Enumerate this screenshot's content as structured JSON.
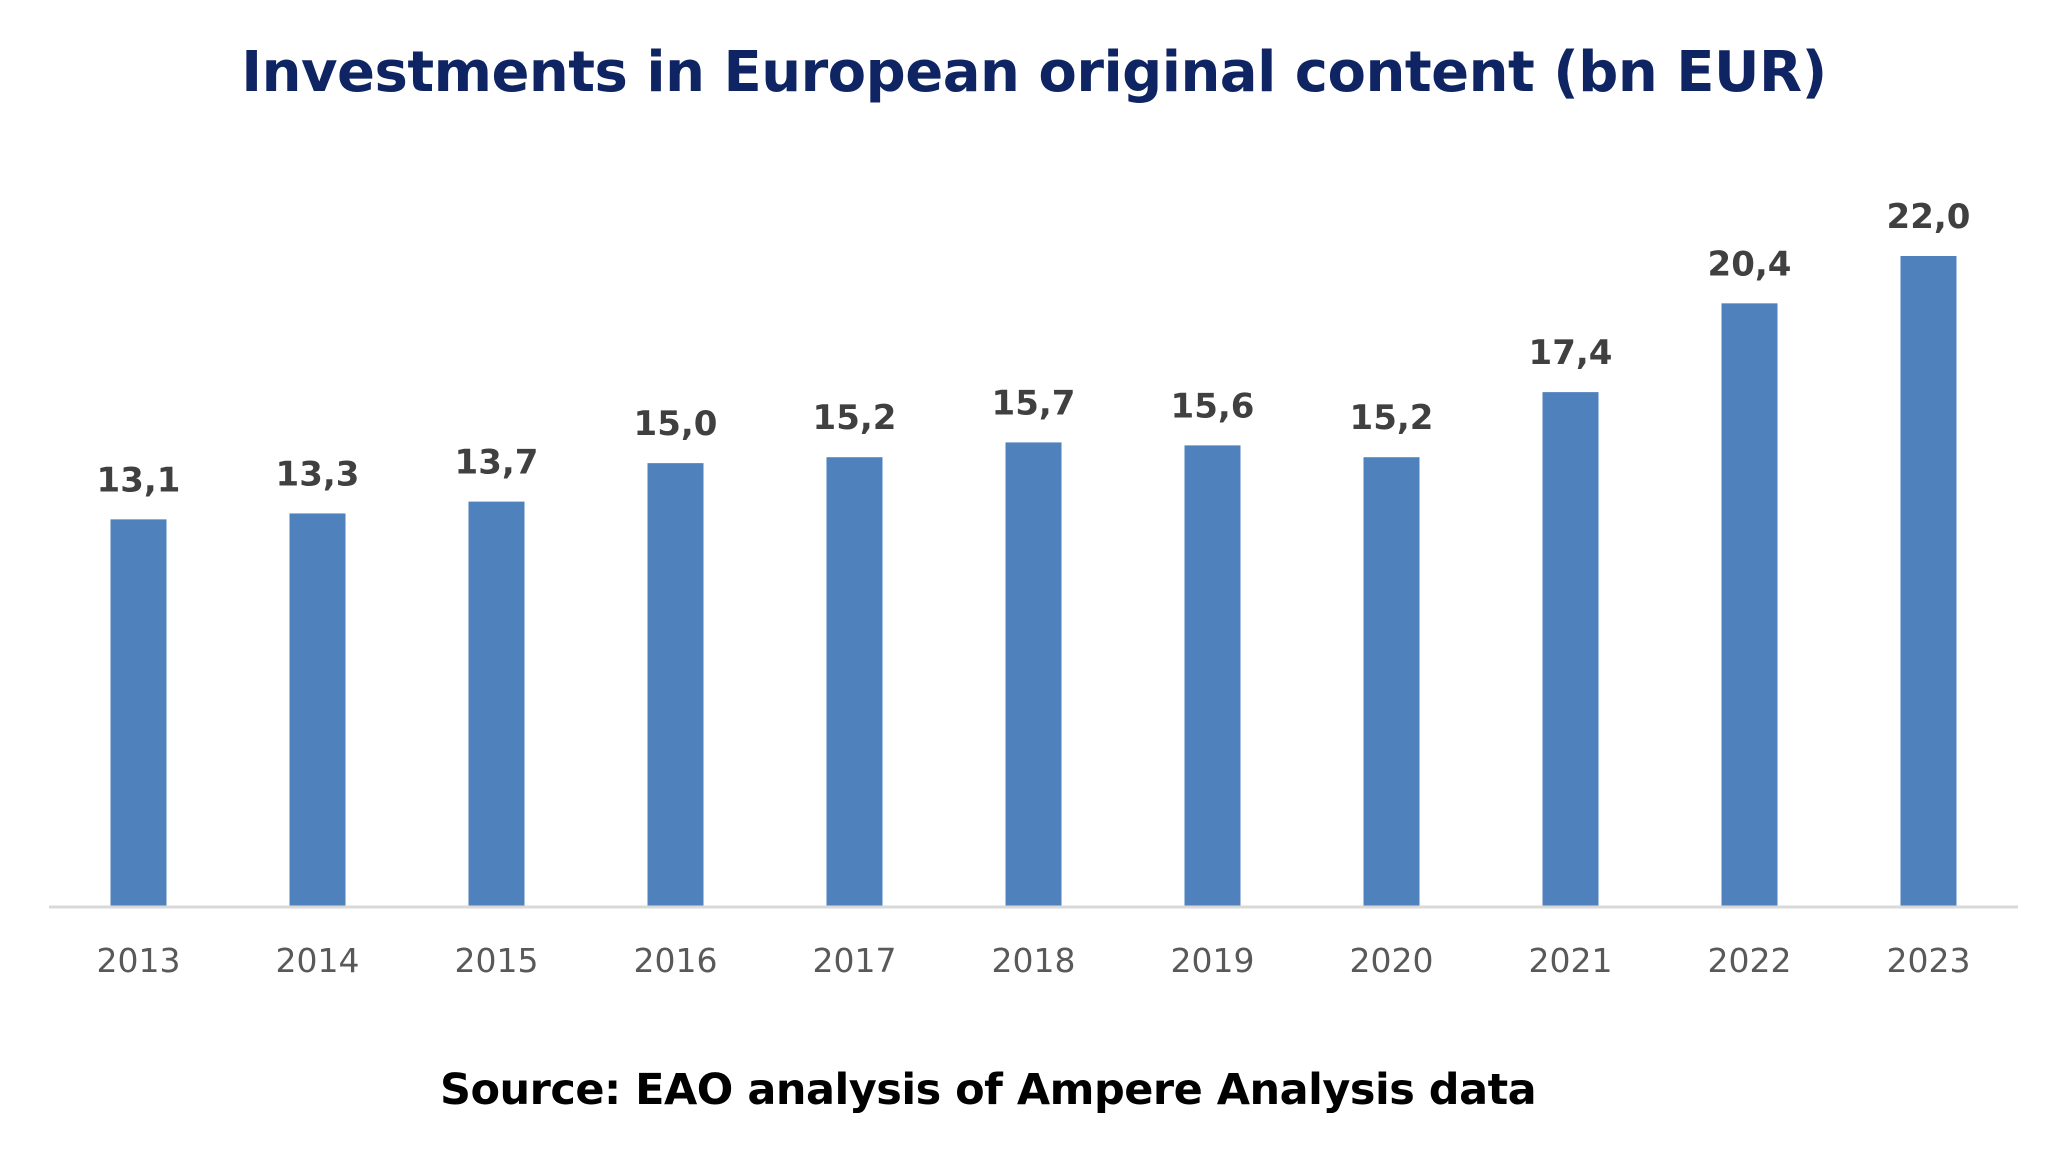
{
  "chart_data": {
    "type": "bar",
    "title": "Investments in European original content (bn EUR)",
    "xlabel": "",
    "ylabel": "",
    "categories": [
      "2013",
      "2014",
      "2015",
      "2016",
      "2017",
      "2018",
      "2019",
      "2020",
      "2021",
      "2022",
      "2023"
    ],
    "values": [
      13.1,
      13.3,
      13.7,
      15.0,
      15.2,
      15.7,
      15.6,
      15.2,
      17.4,
      20.4,
      22.0
    ],
    "data_labels": [
      "13,1",
      "13,3",
      "13,7",
      "15,0",
      "15,2",
      "15,7",
      "15,6",
      "15,2",
      "17,4",
      "20,4",
      "22,0"
    ],
    "ylim": [
      0,
      22
    ],
    "grid": false,
    "legend": "none",
    "bar_color": "#4f81bd",
    "title_color": "#0f2463",
    "source": "Source: EAO analysis of Ampere Analysis data"
  }
}
